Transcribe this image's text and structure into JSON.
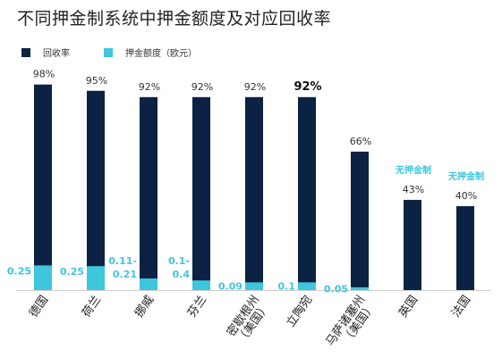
{
  "title": "不同押金制系统中押金额度及对应回收率",
  "colors": {
    "recovery": "#0b2242",
    "deposit": "#3ec6dd",
    "no_deposit_label": "#3ec6dd"
  },
  "legend": [
    {
      "label": "回收率",
      "color": "#0b2242"
    },
    {
      "label": "押金额度（欧元）",
      "color": "#3ec6dd"
    }
  ],
  "chart_data": {
    "type": "bar",
    "title": "不同押金制系统中押金额度及对应回收率",
    "categories": [
      "德国",
      "荷兰",
      "挪威",
      "芬兰",
      "密歇根州（美国）",
      "立陶宛",
      "马萨诸塞州（美国）",
      "英国",
      "法国"
    ],
    "category_labels": [
      [
        "德国"
      ],
      [
        "荷兰"
      ],
      [
        "挪威"
      ],
      [
        "芬兰"
      ],
      [
        "密歇根州",
        "（美国）"
      ],
      [
        "立陶宛"
      ],
      [
        "马萨诸塞州",
        "（美国）"
      ],
      [
        "英国"
      ],
      [
        "法国"
      ]
    ],
    "series": [
      {
        "name": "回收率",
        "values": [
          98,
          95,
          92,
          92,
          92,
          92,
          66,
          43,
          40
        ],
        "value_labels": [
          "98%",
          "95%",
          "92%",
          "92%",
          "92%",
          "92%",
          "66%",
          "43%",
          "40%"
        ]
      },
      {
        "name": "押金额度（欧元）",
        "values": [
          0.25,
          0.25,
          0.16,
          0.25,
          0.09,
          0.1,
          0.05,
          null,
          null
        ],
        "value_labels": [
          [
            "0.25"
          ],
          [
            "0.25"
          ],
          [
            "0.11-",
            "0.21"
          ],
          [
            "0.1-",
            "0.4"
          ],
          [
            "0.09"
          ],
          [
            "0.1"
          ],
          [
            "0.05"
          ],
          [],
          []
        ],
        "segment_percent_of_bar": [
          12,
          12,
          6,
          5,
          4,
          4,
          2,
          0,
          0
        ]
      }
    ],
    "no_deposit_label": "无押金制",
    "no_deposit_categories": [
      "英国",
      "法国"
    ],
    "highlighted_category": "立陶宛",
    "ylim": [
      0,
      100
    ],
    "grid": false,
    "legend_position": "top-left"
  }
}
